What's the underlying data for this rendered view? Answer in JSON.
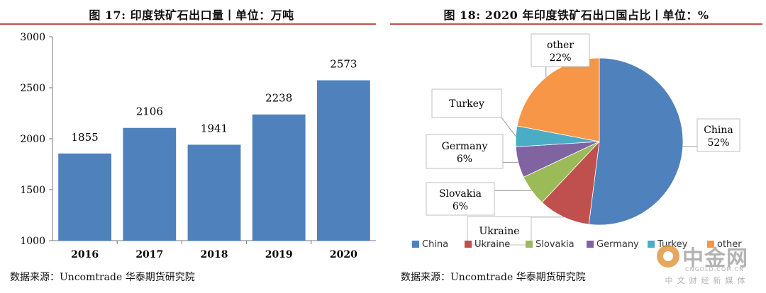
{
  "chart_data": [
    {
      "type": "bar",
      "title": "图 17: 印度铁矿石出口量丨单位：万吨",
      "categories": [
        "2016",
        "2017",
        "2018",
        "2019",
        "2020"
      ],
      "values": [
        1855,
        2106,
        1941,
        2238,
        2573
      ],
      "value_labels": [
        "1855",
        "2106",
        "1941",
        "2238",
        "2573"
      ],
      "ylim": [
        1000,
        3000
      ],
      "yticks": [
        "1000",
        "1500",
        "2000",
        "2500",
        "3000"
      ],
      "xlabel": "",
      "ylabel": "",
      "color": "#4f81bd",
      "grid": false,
      "source": "数据来源：Uncomtrade 华泰期货研究院"
    },
    {
      "type": "pie",
      "title": "图 18: 2020 年印度铁矿石出口国占比丨单位：%",
      "labels": [
        "China",
        "Ukraine",
        "Slovakia",
        "Germany",
        "Turkey",
        "other"
      ],
      "values": [
        52,
        10,
        6,
        6,
        4,
        22
      ],
      "slice_labels": [
        {
          "name": "China",
          "value": "52%"
        },
        {
          "name": "Ukraine",
          "value": ""
        },
        {
          "name": "Slovakia",
          "value": "6%"
        },
        {
          "name": "Germany",
          "value": "6%"
        },
        {
          "name": "Turkey",
          "value": ""
        },
        {
          "name": "other",
          "value": "22%"
        }
      ],
      "colors": [
        "#4f81bd",
        "#c0504d",
        "#9bbb59",
        "#8064a2",
        "#4bacc6",
        "#f79646"
      ],
      "legend": [
        "China",
        "Ukraine",
        "Slovakia",
        "Germany",
        "Turkey",
        "other"
      ],
      "legend_position": "bottom",
      "source": "数据来源：Uncomtrade 华泰期货研究院"
    }
  ],
  "watermark": {
    "name": "中金网",
    "url": "CNGOLD.COM.CN",
    "tagline": "中文财经新媒体",
    "logo_color": "#e08a2a"
  }
}
